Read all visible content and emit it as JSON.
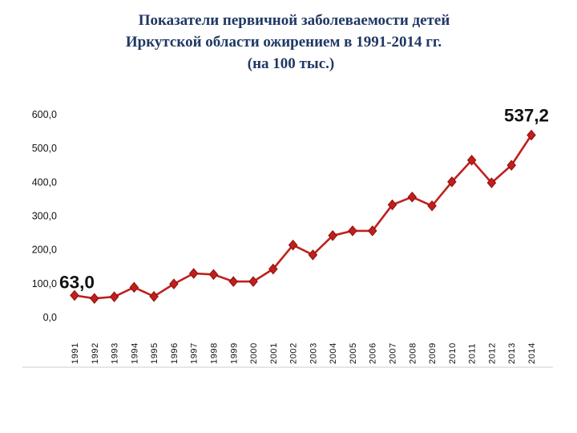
{
  "title": {
    "line1": "Показатели первичной заболеваемости детей",
    "line2": "Иркутской области ожирением в 1991-2014 гг.",
    "line3": "(на 100 тыс.)"
  },
  "colors": {
    "line": "#c0201d",
    "marker": "#c0201d",
    "marker_dark": "#8c0e0c",
    "title": "#1f3864",
    "text": "#111111"
  },
  "chart_data": {
    "type": "line",
    "x": [
      "1991",
      "1992",
      "1993",
      "1994",
      "1995",
      "1996",
      "1997",
      "1998",
      "1999",
      "2000",
      "2001",
      "2002",
      "2003",
      "2004",
      "2005",
      "2006",
      "2007",
      "2008",
      "2009",
      "2010",
      "2011",
      "2012",
      "2013",
      "2014"
    ],
    "series": [
      {
        "values": [
          63.0,
          54,
          59,
          87,
          60,
          97,
          128,
          125,
          104,
          104,
          141,
          212,
          183,
          240,
          254,
          254,
          331,
          354,
          328,
          399,
          463,
          396,
          448,
          537.2
        ]
      }
    ],
    "ylim": [
      0,
      600
    ],
    "yticks": [
      "0,0",
      "100,0",
      "200,0",
      "300,0",
      "400,0",
      "500,0",
      "600,0"
    ],
    "grid": false,
    "annotations": [
      {
        "text": "63,0",
        "point_index": 0
      },
      {
        "text": "537,2",
        "point_index": 23
      }
    ]
  }
}
